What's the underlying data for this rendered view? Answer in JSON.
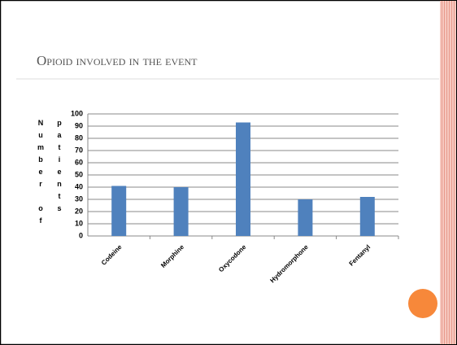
{
  "chart_data": {
    "type": "bar",
    "title": "Opioid involved in the event",
    "y_label": "Number of patients",
    "categories": [
      "Codeine",
      "Morphine",
      "Oxycodone",
      "Hydromorphone",
      "Fentanyl"
    ],
    "values": [
      41,
      40,
      93,
      30,
      32
    ],
    "color": "#4f81bd",
    "ylim": [
      0,
      100
    ],
    "yticks": [
      0,
      10,
      20,
      30,
      40,
      50,
      60,
      70,
      80,
      90,
      100
    ],
    "grid": true
  }
}
